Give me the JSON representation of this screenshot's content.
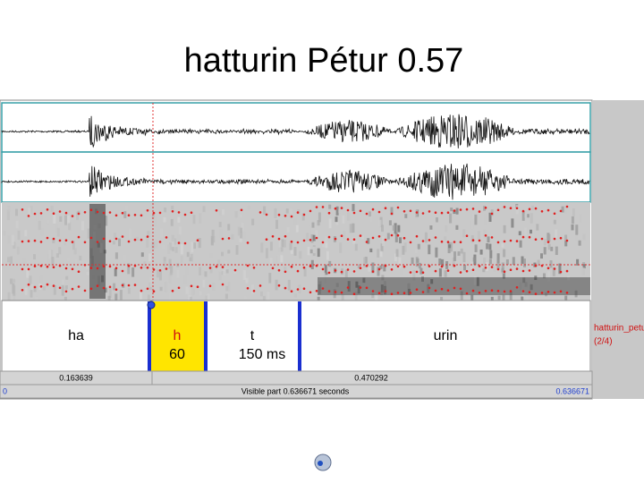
{
  "title": "hatturin Pétur 0.57",
  "tier": {
    "intervals": [
      {
        "label": "ha"
      },
      {
        "label": "h",
        "duration": "60"
      },
      {
        "label": "t",
        "duration": "150 ms"
      },
      {
        "label": "urin"
      }
    ]
  },
  "time_bar": {
    "cursor_left": "0.163639",
    "cursor_right": "0.470292"
  },
  "visible_bar": {
    "start": "0",
    "caption": "Visible part 0.636671 seconds",
    "end": "0.636671"
  },
  "side_panel": {
    "tier_name": "hatturin_petur",
    "count": "(2/4)"
  }
}
